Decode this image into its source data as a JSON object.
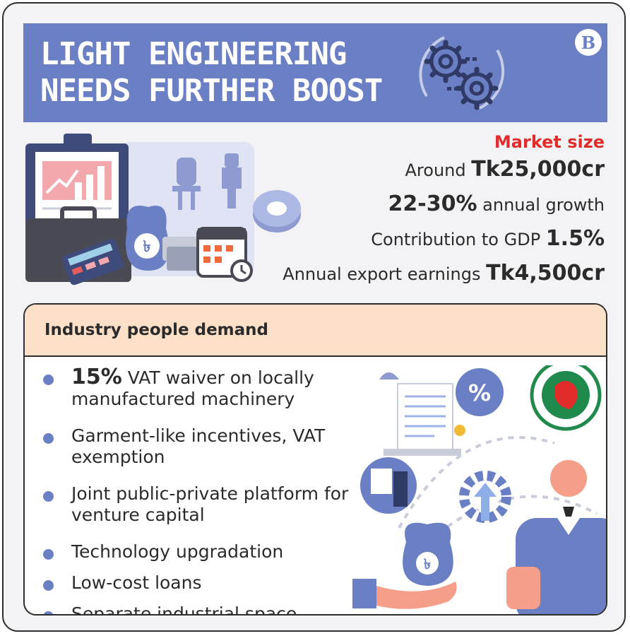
{
  "header": {
    "title_line1": "LIGHT ENGINEERING",
    "title_line2": "NEEDS FURTHER BOOST",
    "logo": "B"
  },
  "market": {
    "label": "Market size",
    "size_prefix": "Around ",
    "size_value": "Tk25,000cr",
    "growth_value": "22-30%",
    "growth_suffix": " annual growth",
    "gdp_prefix": "Contribution to GDP ",
    "gdp_value": "1.5%",
    "export_prefix": "Annual export earnings ",
    "export_value": "Tk4,500cr"
  },
  "demand": {
    "heading": "Industry people demand",
    "items": [
      {
        "strong": "15%",
        "text": " VAT waiver on locally manufactured machinery"
      },
      {
        "text": "Garment-like incentives, VAT exemption"
      },
      {
        "text": "Joint public-private platform for venture capital"
      },
      {
        "text": "Technology upgradation"
      },
      {
        "text": "Low-cost loans"
      },
      {
        "text": "Separate industrial space"
      }
    ]
  },
  "icons": [
    "gears-icon",
    "logo-icon",
    "clipboard-chart-icon",
    "briefcase-icon",
    "money-bag-icon",
    "calculator-icon",
    "cash-icon",
    "calendar-icon",
    "clock-icon",
    "light-bulb-icon",
    "spark-plug-icon",
    "tape-roll-icon",
    "document-icon",
    "percent-icon",
    "clothing-icon",
    "gear-arrow-icon",
    "government-seal-icon",
    "person-icon",
    "hand-money-bag-icon"
  ],
  "colors": {
    "primary": "#6b7fc4",
    "accent_red": "#e22b2b",
    "demand_header": "#fde0c8",
    "background": "#f3f3f5"
  }
}
